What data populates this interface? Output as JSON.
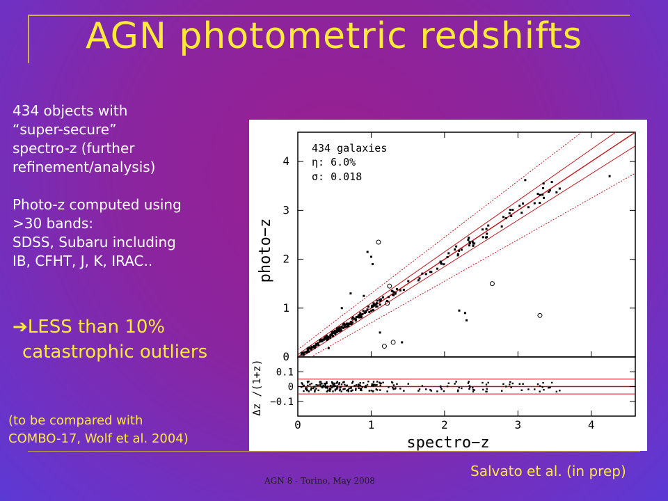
{
  "slide": {
    "title": "AGN photometric redshifts",
    "body_lines": [
      "434 objects with",
      "“super-secure”",
      "spectro-z (further",
      "refinement/analysis)",
      "",
      "Photo-z computed using",
      ">30 bands:",
      "SDSS, Subaru including",
      "IB, CFHT, J, K, IRAC.."
    ],
    "outlier_arrow": "➔",
    "outlier_lines": [
      "LESS than 10%",
      "catastrophic outliers"
    ],
    "compare_lines": [
      "(to be compared with",
      "COMBO-17, Wolf et al. 2004)"
    ],
    "credit": "Salvato et al. (in prep)",
    "footer": "AGN 8 - Torino, May 2008"
  },
  "chart_data": {
    "type": "scatter",
    "stats": [
      "434  galaxies",
      "η:    6.0%",
      "σ:    0.018"
    ],
    "xlabel": "spectro−z",
    "ylabel_top": "photo−z",
    "ylabel_bottom": "Δz /(1+z)",
    "xlim": [
      0,
      4.6
    ],
    "ylim_top": [
      0,
      4.6
    ],
    "ylim_bottom": [
      -0.2,
      0.2
    ],
    "x_ticks": [
      "0",
      "1",
      "2",
      "3",
      "4"
    ],
    "y_ticks_top": [
      "0",
      "1",
      "2",
      "3",
      "4"
    ],
    "y_ticks_bottom": [
      "0.1",
      "0",
      "−0.1"
    ],
    "reference_lines": {
      "one_to_one": 0,
      "sigma_band": 0.05,
      "outlier_band": 0.15
    },
    "outlier_points": [
      {
        "x": 0.95,
        "y": 2.15,
        "marker": "dot"
      },
      {
        "x": 1.0,
        "y": 2.05,
        "marker": "dot"
      },
      {
        "x": 1.02,
        "y": 1.9,
        "marker": "dot"
      },
      {
        "x": 1.1,
        "y": 2.35,
        "marker": "circle"
      },
      {
        "x": 0.72,
        "y": 1.3,
        "marker": "dot"
      },
      {
        "x": 0.9,
        "y": 1.25,
        "marker": "dot"
      },
      {
        "x": 1.25,
        "y": 1.45,
        "marker": "circle"
      },
      {
        "x": 1.22,
        "y": 1.1,
        "marker": "circle"
      },
      {
        "x": 2.2,
        "y": 0.95,
        "marker": "dot"
      },
      {
        "x": 2.28,
        "y": 0.9,
        "marker": "dot"
      },
      {
        "x": 2.3,
        "y": 0.75,
        "marker": "dot"
      },
      {
        "x": 2.65,
        "y": 1.5,
        "marker": "circle"
      },
      {
        "x": 3.3,
        "y": 0.85,
        "marker": "circle"
      },
      {
        "x": 1.12,
        "y": 0.5,
        "marker": "dot"
      },
      {
        "x": 1.18,
        "y": 0.22,
        "marker": "circle"
      },
      {
        "x": 1.3,
        "y": 0.3,
        "marker": "circle"
      },
      {
        "x": 1.42,
        "y": 0.3,
        "marker": "dot"
      },
      {
        "x": 0.6,
        "y": 1.0,
        "marker": "dot"
      },
      {
        "x": 0.55,
        "y": 0.55,
        "marker": "dot"
      },
      {
        "x": 0.42,
        "y": 0.18,
        "marker": "dot"
      },
      {
        "x": 3.35,
        "y": 3.55,
        "marker": "dot"
      },
      {
        "x": 3.1,
        "y": 3.62,
        "marker": "dot"
      },
      {
        "x": 4.25,
        "y": 3.7,
        "marker": "dot"
      }
    ]
  }
}
